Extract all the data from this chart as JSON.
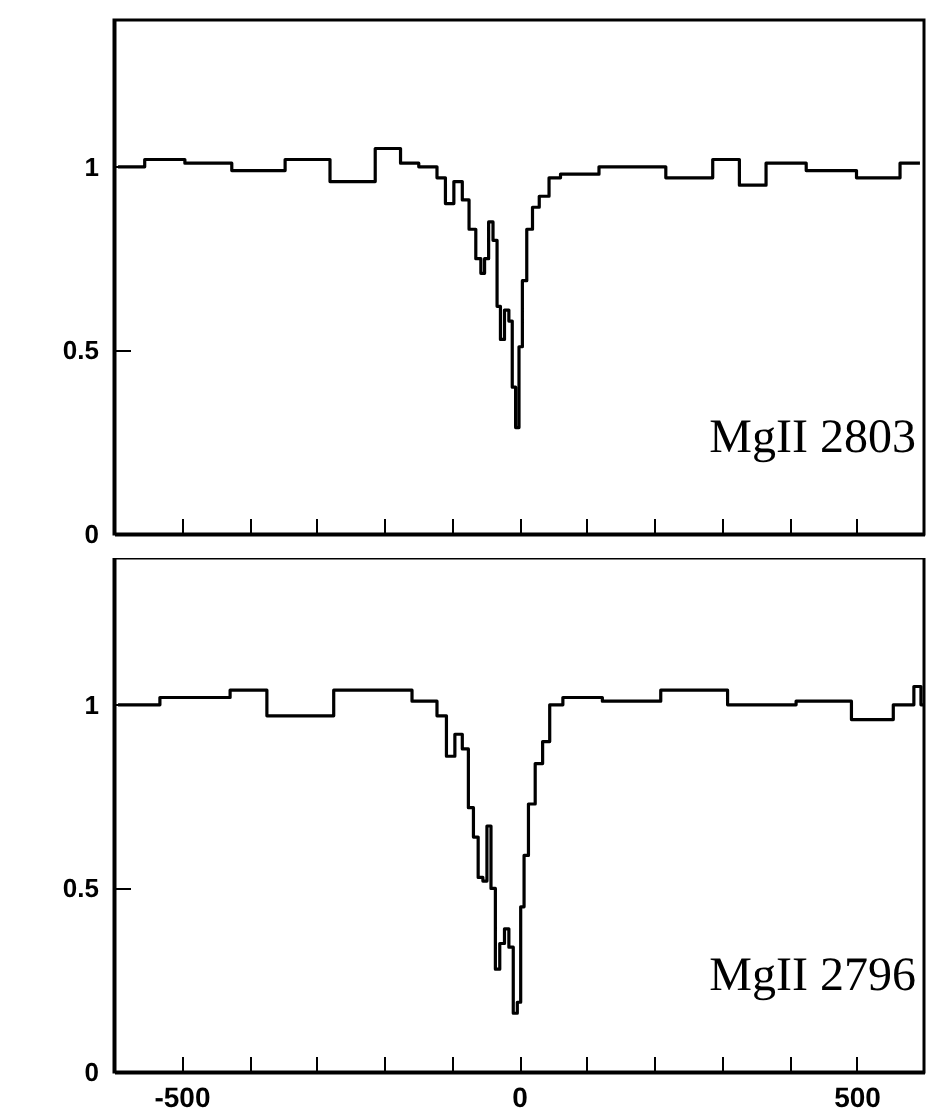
{
  "chart_data": [
    {
      "type": "step",
      "x": [
        -594,
        -515,
        -475,
        -376,
        -317,
        -243,
        -183,
        -168,
        -129,
        -114,
        -104,
        -89,
        -79,
        -69,
        -59,
        -54,
        -48,
        -42,
        -35,
        -30,
        -25,
        -18,
        -12,
        -8,
        -2,
        2,
        8,
        15,
        25,
        35,
        54,
        69,
        168,
        267,
        307,
        346,
        386,
        465,
        535,
        594
      ],
      "series": [
        {
          "color": "#000000",
          "values": [
            1.0,
            1.02,
            1.01,
            0.99,
            1.02,
            0.96,
            1.05,
            1.01,
            1.0,
            0.97,
            0.9,
            0.96,
            0.91,
            0.83,
            0.75,
            0.71,
            0.75,
            0.85,
            0.8,
            0.62,
            0.53,
            0.61,
            0.58,
            0.4,
            0.29,
            0.51,
            0.69,
            0.83,
            0.89,
            0.92,
            0.97,
            0.98,
            1.0,
            0.97,
            1.02,
            0.95,
            1.01,
            0.99,
            0.97,
            1.01
          ]
        }
      ],
      "xlim": [
        -600,
        600
      ],
      "ylim": [
        0,
        1.4
      ],
      "xticks": [
        {
          "value": -500,
          "label": null
        },
        {
          "value": -400,
          "label": null
        },
        {
          "value": -300,
          "label": null
        },
        {
          "value": -200,
          "label": null
        },
        {
          "value": -100,
          "label": null
        },
        {
          "value": 0,
          "label": null
        },
        {
          "value": 100,
          "label": null
        },
        {
          "value": 200,
          "label": null
        },
        {
          "value": 300,
          "label": null
        },
        {
          "value": 400,
          "label": null
        },
        {
          "value": 500,
          "label": null
        }
      ],
      "yticks": [
        0,
        0.5,
        1
      ],
      "tick_labels": "y",
      "annotations": [
        "MgII  2803"
      ]
    },
    {
      "type": "step",
      "x": [
        -594,
        -470,
        -386,
        -361,
        -188,
        -129,
        -114,
        -101,
        -89,
        -79,
        -71,
        -64,
        -57,
        -50,
        -45,
        -38,
        -32,
        -25,
        -18,
        -12,
        -5,
        0,
        5,
        10,
        18,
        30,
        40,
        51,
        79,
        168,
        252,
        366,
        455,
        530,
        579,
        591,
        600
      ],
      "series": [
        {
          "color": "#000000",
          "values": [
            1.0,
            1.02,
            1.04,
            0.97,
            1.04,
            1.01,
            0.97,
            0.86,
            0.92,
            0.88,
            0.72,
            0.64,
            0.53,
            0.52,
            0.67,
            0.5,
            0.28,
            0.35,
            0.39,
            0.34,
            0.16,
            0.19,
            0.45,
            0.59,
            0.73,
            0.84,
            0.9,
            1.0,
            1.02,
            1.01,
            1.04,
            1.0,
            1.01,
            0.96,
            1.0,
            1.05,
            1.0
          ]
        }
      ],
      "xlim": [
        -600,
        600
      ],
      "ylim": [
        0,
        1.4
      ],
      "xticks": [
        -500,
        {
          "value": -400,
          "label": null
        },
        {
          "value": -300,
          "label": null
        },
        {
          "value": -200,
          "label": null
        },
        {
          "value": -100,
          "label": null
        },
        0,
        {
          "value": 100,
          "label": null
        },
        {
          "value": 200,
          "label": null
        },
        {
          "value": 300,
          "label": null
        },
        {
          "value": 400,
          "label": null
        },
        500
      ],
      "yticks": [
        0,
        0.5,
        1
      ],
      "annotations": [
        "MgII  2796"
      ]
    }
  ]
}
